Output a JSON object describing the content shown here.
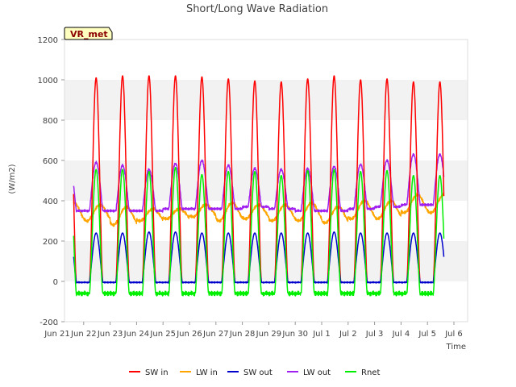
{
  "chart_data": {
    "type": "line",
    "title": "Short/Long Wave Radiation",
    "xlabel": "Time",
    "ylabel": "(W/m2)",
    "badge": "VR_met",
    "ylim": [
      -200,
      1200
    ],
    "yticks": [
      -200,
      0,
      200,
      400,
      600,
      800,
      1000,
      1200
    ],
    "xlim_days": [
      0,
      16
    ],
    "xtick_labels": [
      "Jun 21",
      "Jun 22",
      "Jun 23",
      "Jun 24",
      "Jun 25",
      "Jun 26",
      "Jun 27",
      "Jun 28",
      "Jun 29",
      "Jun 30",
      "Jul 1",
      "Jul 2",
      "Jul 3",
      "Jul 4",
      "Jul 5",
      "Jul 6"
    ],
    "days": [
      "Jun 21",
      "Jun 22",
      "Jun 23",
      "Jun 24",
      "Jun 25",
      "Jun 26",
      "Jun 27",
      "Jun 28",
      "Jun 29",
      "Jun 30",
      "Jul 1",
      "Jul 2",
      "Jul 3",
      "Jul 4",
      "Jul 5"
    ],
    "grid": "horizontal bands",
    "legend_placement": "bottom",
    "series": [
      {
        "name": "SW in",
        "color": "#ff0000",
        "daily_peak": [
          1015,
          1010,
          1020,
          1020,
          1020,
          1015,
          1005,
          995,
          990,
          1005,
          1020,
          1000,
          1005,
          990
        ],
        "night": -5
      },
      {
        "name": "LW in",
        "color": "#ffa500",
        "daily_min": [
          300,
          300,
          280,
          300,
          310,
          320,
          300,
          310,
          300,
          300,
          290,
          310,
          310,
          340
        ],
        "daily_max": [
          390,
          380,
          370,
          360,
          360,
          380,
          390,
          380,
          380,
          390,
          370,
          400,
          400,
          430
        ]
      },
      {
        "name": "SW out",
        "color": "#0000cd",
        "daily_peak": [
          240,
          240,
          240,
          245,
          245,
          240,
          240,
          240,
          240,
          240,
          245,
          240,
          240,
          240
        ],
        "night": -5
      },
      {
        "name": "LW out",
        "color": "#a020f0",
        "daily_min": [
          350,
          350,
          350,
          350,
          360,
          360,
          360,
          370,
          360,
          350,
          350,
          360,
          370,
          380
        ],
        "daily_max": [
          575,
          590,
          575,
          555,
          585,
          600,
          575,
          560,
          555,
          560,
          570,
          580,
          600,
          630
        ]
      },
      {
        "name": "Rnet",
        "color": "#00ee00",
        "daily_peak": [
          555,
          555,
          555,
          545,
          565,
          530,
          545,
          545,
          525,
          550,
          555,
          545,
          550,
          525
        ],
        "night": -60
      }
    ]
  }
}
